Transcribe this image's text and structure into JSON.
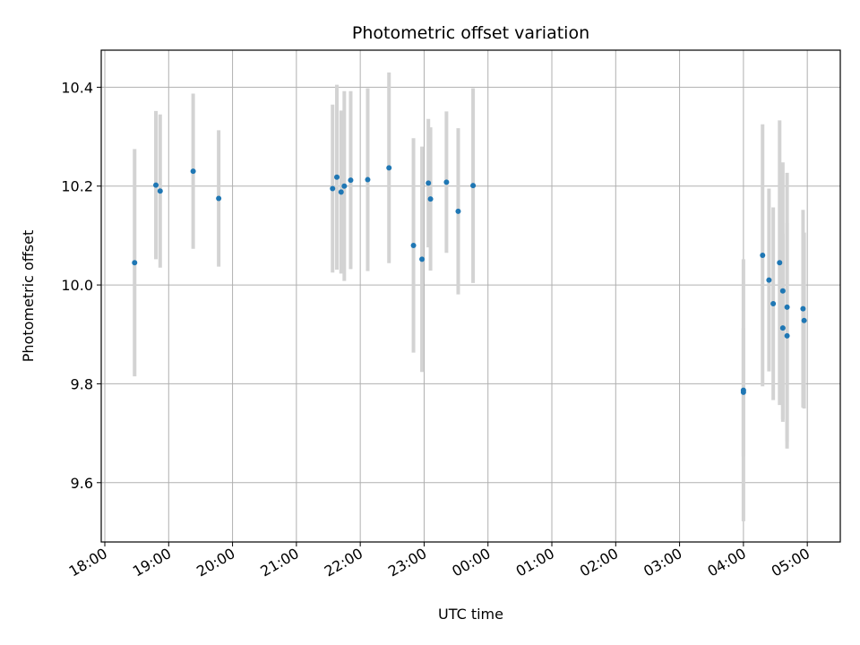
{
  "chart_data": {
    "type": "scatter",
    "title": "Photometric offset variation",
    "xlabel": "UTC time",
    "ylabel": "Photometric offset",
    "x_tick_labels": [
      "18:00",
      "19:00",
      "20:00",
      "21:00",
      "22:00",
      "23:00",
      "00:00",
      "01:00",
      "02:00",
      "03:00",
      "04:00",
      "05:00"
    ],
    "y_tick_labels": [
      "9.6",
      "9.8",
      "10.0",
      "10.2",
      "10.4"
    ],
    "y_ticks": [
      9.6,
      9.8,
      10.0,
      10.2,
      10.4
    ],
    "xlim": [
      "18:00",
      "05:29"
    ],
    "ylim": [
      9.48,
      10.475
    ],
    "grid": true,
    "colors": {
      "marker": "#1f77b4",
      "errorbar": "#d3d3d3",
      "grid": "#b0b0b0"
    },
    "series": [
      {
        "points": [
          {
            "t": "18:28",
            "y": 10.045,
            "err": 0.23
          },
          {
            "t": "18:48",
            "y": 10.202,
            "err": 0.15
          },
          {
            "t": "18:52",
            "y": 10.19,
            "err": 0.155
          },
          {
            "t": "19:23",
            "y": 10.23,
            "err": 0.157
          },
          {
            "t": "19:47",
            "y": 10.175,
            "err": 0.138
          },
          {
            "t": "21:34",
            "y": 10.195,
            "err": 0.17
          },
          {
            "t": "21:38",
            "y": 10.218,
            "err": 0.187
          },
          {
            "t": "21:42",
            "y": 10.188,
            "err": 0.165
          },
          {
            "t": "21:45",
            "y": 10.2,
            "err": 0.192
          },
          {
            "t": "21:51",
            "y": 10.212,
            "err": 0.18
          },
          {
            "t": "22:07",
            "y": 10.213,
            "err": 0.185
          },
          {
            "t": "22:27",
            "y": 10.237,
            "err": 0.193
          },
          {
            "t": "22:50",
            "y": 10.08,
            "err": 0.217
          },
          {
            "t": "22:58",
            "y": 10.052,
            "err": 0.228
          },
          {
            "t": "23:04",
            "y": 10.206,
            "err": 0.13
          },
          {
            "t": "23:06",
            "y": 10.174,
            "err": 0.145
          },
          {
            "t": "23:21",
            "y": 10.208,
            "err": 0.143
          },
          {
            "t": "23:32",
            "y": 10.149,
            "err": 0.168
          },
          {
            "t": "23:46",
            "y": 10.201,
            "err": 0.197
          },
          {
            "t": "04:00",
            "y": 9.787,
            "err": 0.265
          },
          {
            "t": "04:00",
            "y": 9.783,
            "err": 0.13
          },
          {
            "t": "04:18",
            "y": 10.06,
            "err": 0.265
          },
          {
            "t": "04:24",
            "y": 10.01,
            "err": 0.185
          },
          {
            "t": "04:28",
            "y": 9.962,
            "err": 0.195
          },
          {
            "t": "04:34",
            "y": 10.045,
            "err": 0.288
          },
          {
            "t": "04:37",
            "y": 9.988,
            "err": 0.26
          },
          {
            "t": "04:37",
            "y": 9.913,
            "err": 0.19
          },
          {
            "t": "04:41",
            "y": 9.955,
            "err": 0.272
          },
          {
            "t": "04:41",
            "y": 9.897,
            "err": 0.228
          },
          {
            "t": "04:56",
            "y": 9.952,
            "err": 0.2
          },
          {
            "t": "04:57",
            "y": 9.928,
            "err": 0.178
          }
        ]
      }
    ]
  }
}
